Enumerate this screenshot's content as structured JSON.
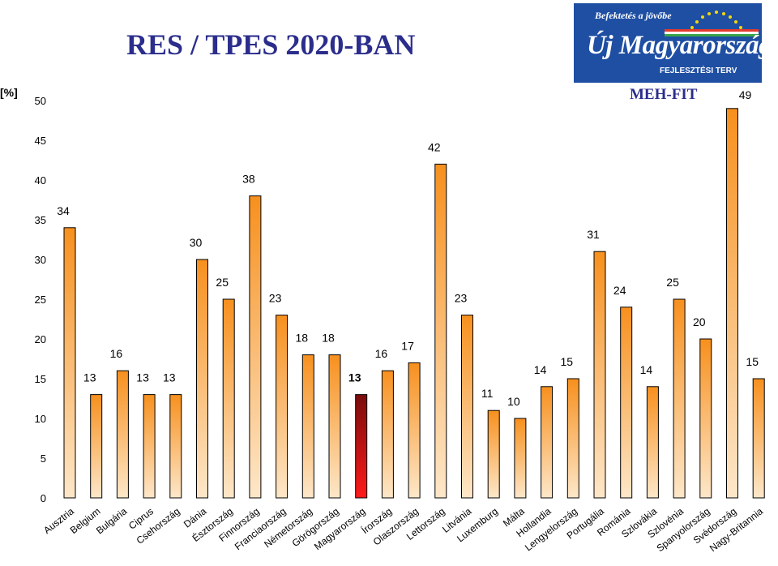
{
  "title": "RES / TPES 2020-BAN",
  "unit_label": "[%]",
  "logo": {
    "tagline": "Befektetés a jövőbe",
    "main_text": "Új Magyarország",
    "subtitle": "FEJLESZTÉSI TERV"
  },
  "organization": "MEH-FIT",
  "colors": {
    "bar_gradient_top": "#f7901e",
    "bar_gradient_bottom": "#fde7c9",
    "highlight_top": "#7a0c0c",
    "highlight_bottom": "#ff1a1a",
    "title": "#2b2d8c",
    "logo_bg": "#1f4fa3"
  },
  "chart_data": {
    "type": "bar",
    "categories": [
      "Ausztria",
      "Belgium",
      "Bulgária",
      "Ciprus",
      "Csehország",
      "Dánia",
      "Észtország",
      "Finnország",
      "Franciaország",
      "Németország",
      "Görögország",
      "Magyarország",
      "Írország",
      "Olaszország",
      "Lettország",
      "Litvánia",
      "Luxemburg",
      "Málta",
      "Hollandia",
      "Lengyelország",
      "Portugália",
      "Románia",
      "Szlovákia",
      "Szlovénia",
      "Spanyolország",
      "Svédország",
      "Nagy-Britannia"
    ],
    "values": [
      34,
      13,
      16,
      13,
      13,
      30,
      25,
      38,
      23,
      18,
      18,
      13,
      16,
      17,
      42,
      23,
      11,
      10,
      14,
      15,
      31,
      24,
      14,
      25,
      20,
      49,
      15
    ],
    "highlight_category": "Magyarország",
    "yticks": [
      0,
      5,
      10,
      15,
      20,
      25,
      30,
      35,
      40,
      45,
      50
    ],
    "ylim": [
      0,
      50
    ],
    "grid": false,
    "legend": "none"
  }
}
